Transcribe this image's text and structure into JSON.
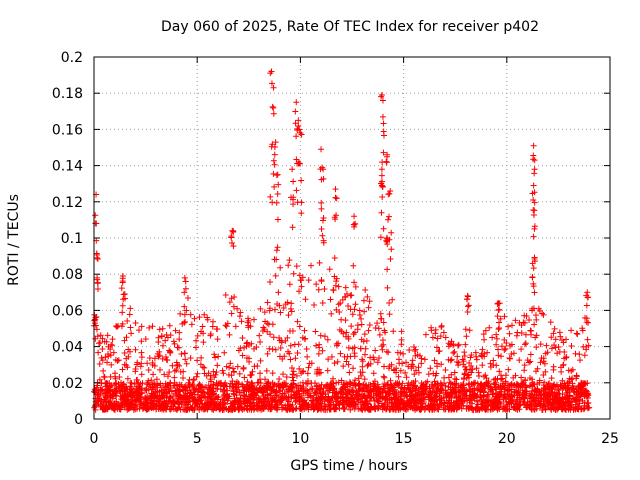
{
  "chart_data": {
    "type": "scatter",
    "title": "Day 060 of 2025, Rate Of TEC Index for receiver p402",
    "xlabel": "GPS time / hours",
    "ylabel": "ROTI / TECUs",
    "xlim": [
      0,
      25
    ],
    "ylim": [
      0,
      0.2
    ],
    "xticks": [
      "0",
      "5",
      "10",
      "15",
      "20",
      "25"
    ],
    "yticks": [
      "0",
      "0.02",
      "0.04",
      "0.06",
      "0.08",
      "0.1",
      "0.12",
      "0.14",
      "0.16",
      "0.18",
      "0.2"
    ],
    "grid": true,
    "marker": "+",
    "color": "#ff0000",
    "data_extent_hours": [
      0,
      24
    ],
    "peaks": [
      {
        "x": 0.05,
        "y": 0.055
      },
      {
        "x": 0.1,
        "y": 0.124
      },
      {
        "x": 0.15,
        "y": 0.089
      },
      {
        "x": 1.4,
        "y": 0.079
      },
      {
        "x": 4.4,
        "y": 0.078
      },
      {
        "x": 6.7,
        "y": 0.104
      },
      {
        "x": 8.6,
        "y": 0.192
      },
      {
        "x": 8.7,
        "y": 0.183
      },
      {
        "x": 8.8,
        "y": 0.153
      },
      {
        "x": 8.9,
        "y": 0.135
      },
      {
        "x": 9.8,
        "y": 0.175
      },
      {
        "x": 9.9,
        "y": 0.165
      },
      {
        "x": 10.0,
        "y": 0.158
      },
      {
        "x": 9.6,
        "y": 0.138
      },
      {
        "x": 11.0,
        "y": 0.149
      },
      {
        "x": 11.1,
        "y": 0.138
      },
      {
        "x": 11.7,
        "y": 0.127
      },
      {
        "x": 12.6,
        "y": 0.112
      },
      {
        "x": 13.95,
        "y": 0.179
      },
      {
        "x": 14.0,
        "y": 0.176
      },
      {
        "x": 13.95,
        "y": 0.138
      },
      {
        "x": 14.2,
        "y": 0.146
      },
      {
        "x": 14.35,
        "y": 0.126
      },
      {
        "x": 14.2,
        "y": 0.1
      },
      {
        "x": 18.1,
        "y": 0.068
      },
      {
        "x": 19.6,
        "y": 0.064
      },
      {
        "x": 21.3,
        "y": 0.151
      },
      {
        "x": 21.35,
        "y": 0.143
      },
      {
        "x": 21.3,
        "y": 0.129
      },
      {
        "x": 21.25,
        "y": 0.086
      },
      {
        "x": 23.9,
        "y": 0.07
      }
    ],
    "activity_envelope": [
      {
        "x": 0,
        "y": 0.06
      },
      {
        "x": 0.5,
        "y": 0.045
      },
      {
        "x": 1.0,
        "y": 0.05
      },
      {
        "x": 1.5,
        "y": 0.072
      },
      {
        "x": 2.0,
        "y": 0.055
      },
      {
        "x": 2.5,
        "y": 0.05
      },
      {
        "x": 3.0,
        "y": 0.055
      },
      {
        "x": 3.5,
        "y": 0.05
      },
      {
        "x": 4.0,
        "y": 0.055
      },
      {
        "x": 4.5,
        "y": 0.07
      },
      {
        "x": 5.0,
        "y": 0.06
      },
      {
        "x": 5.5,
        "y": 0.062
      },
      {
        "x": 6.0,
        "y": 0.05
      },
      {
        "x": 6.5,
        "y": 0.075
      },
      {
        "x": 7.0,
        "y": 0.07
      },
      {
        "x": 7.5,
        "y": 0.055
      },
      {
        "x": 8.0,
        "y": 0.06
      },
      {
        "x": 8.5,
        "y": 0.08
      },
      {
        "x": 9.0,
        "y": 0.09
      },
      {
        "x": 9.5,
        "y": 0.088
      },
      {
        "x": 10.0,
        "y": 0.095
      },
      {
        "x": 10.5,
        "y": 0.085
      },
      {
        "x": 11.0,
        "y": 0.09
      },
      {
        "x": 11.5,
        "y": 0.085
      },
      {
        "x": 12.0,
        "y": 0.088
      },
      {
        "x": 12.5,
        "y": 0.08
      },
      {
        "x": 13.0,
        "y": 0.075
      },
      {
        "x": 13.5,
        "y": 0.07
      },
      {
        "x": 14.0,
        "y": 0.08
      },
      {
        "x": 14.5,
        "y": 0.07
      },
      {
        "x": 15.0,
        "y": 0.045
      },
      {
        "x": 15.5,
        "y": 0.04
      },
      {
        "x": 16.0,
        "y": 0.045
      },
      {
        "x": 16.5,
        "y": 0.055
      },
      {
        "x": 17.0,
        "y": 0.05
      },
      {
        "x": 17.5,
        "y": 0.04
      },
      {
        "x": 18.0,
        "y": 0.055
      },
      {
        "x": 18.5,
        "y": 0.045
      },
      {
        "x": 19.0,
        "y": 0.05
      },
      {
        "x": 19.5,
        "y": 0.06
      },
      {
        "x": 20.0,
        "y": 0.06
      },
      {
        "x": 20.5,
        "y": 0.055
      },
      {
        "x": 21.0,
        "y": 0.06
      },
      {
        "x": 21.5,
        "y": 0.065
      },
      {
        "x": 22.0,
        "y": 0.055
      },
      {
        "x": 22.5,
        "y": 0.05
      },
      {
        "x": 23.0,
        "y": 0.05
      },
      {
        "x": 23.5,
        "y": 0.055
      },
      {
        "x": 24.0,
        "y": 0.06
      }
    ],
    "baseline": [
      0.005,
      0.02
    ]
  }
}
